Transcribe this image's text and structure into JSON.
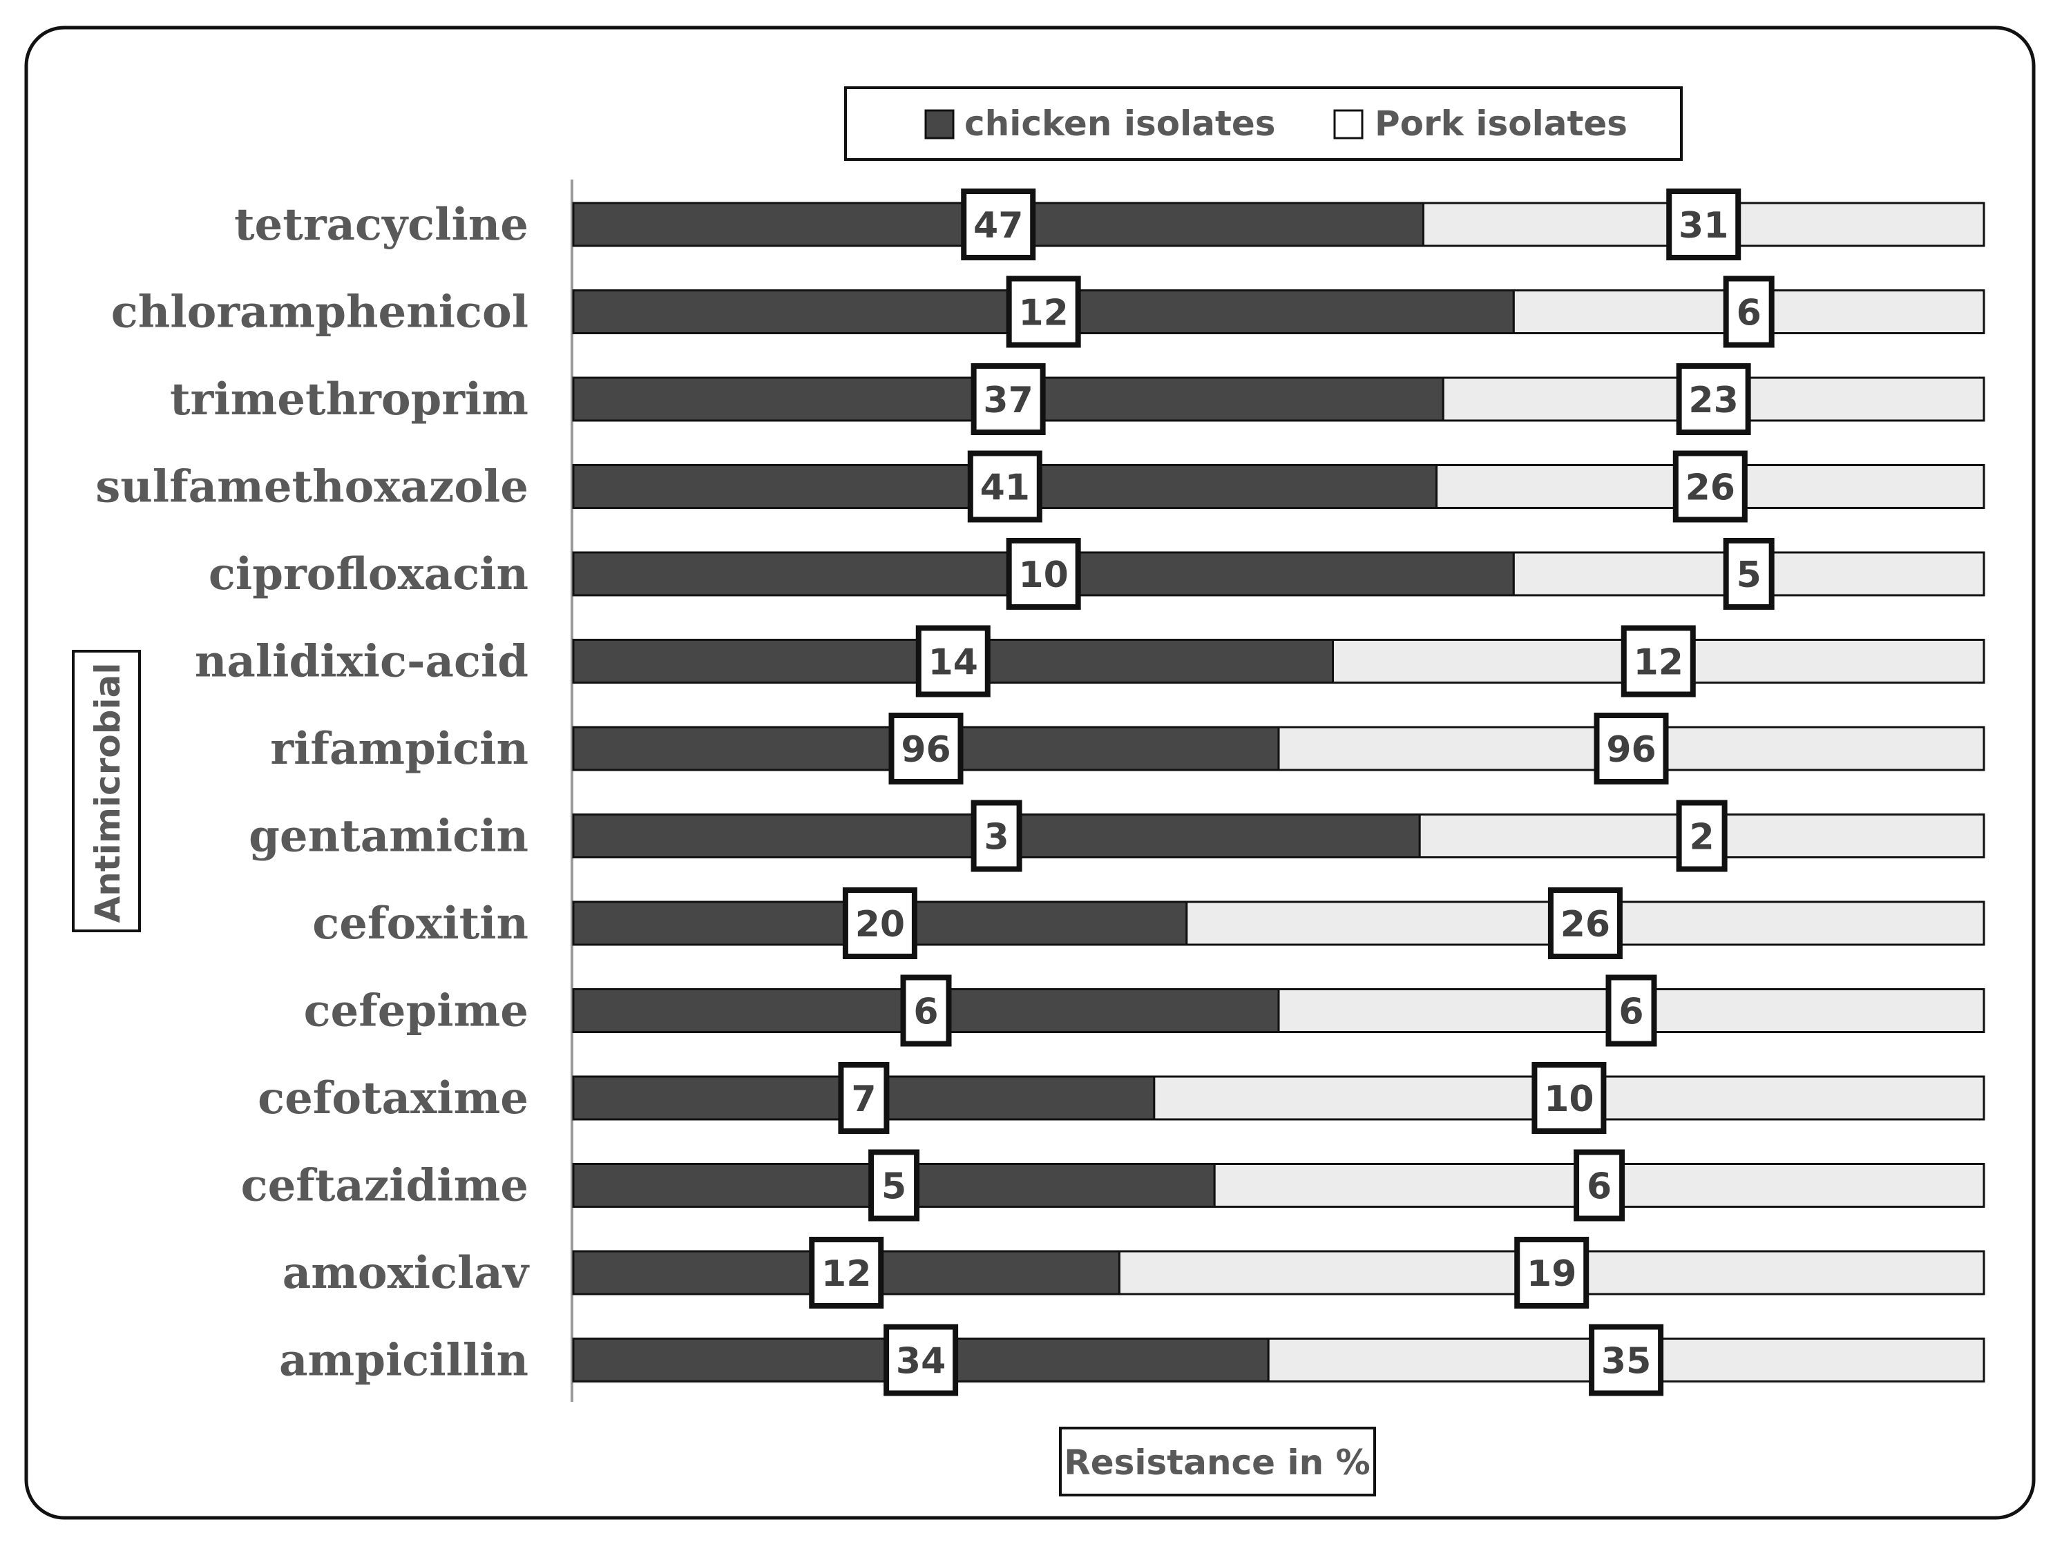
{
  "colors": {
    "chicken": "#474747",
    "pork": "#ececec",
    "text": "#595959",
    "border": "#111111"
  },
  "chart_data": {
    "type": "bar",
    "orientation": "horizontal",
    "stacked": true,
    "title": "",
    "xlabel": "Resistance in %",
    "ylabel": "Antimicrobial",
    "legend_position": "top-center",
    "categories": [
      "tetracycline",
      "chloramphenicol",
      "trimethroprim",
      "sulfamethoxazole",
      "ciprofloxacin",
      "nalidixic-acid",
      "rifampicin",
      "gentamicin",
      "cefoxitin",
      "cefepime",
      "cefotaxime",
      "ceftazidime",
      "amoxiclav",
      "ampicillin"
    ],
    "series": [
      {
        "name": "chicken isolates",
        "values": [
          47,
          12,
          37,
          41,
          10,
          14,
          96,
          3,
          20,
          6,
          7,
          5,
          12,
          34
        ]
      },
      {
        "name": "Pork isolates",
        "values": [
          31,
          6,
          23,
          26,
          5,
          12,
          96,
          2,
          26,
          6,
          10,
          6,
          19,
          35
        ]
      }
    ],
    "grid": false
  }
}
